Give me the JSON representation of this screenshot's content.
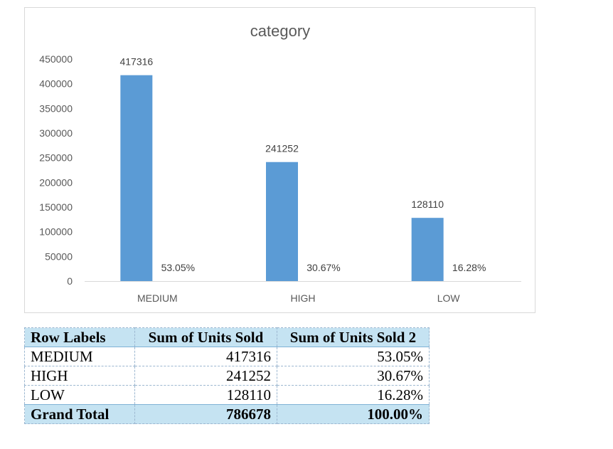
{
  "chart_data": {
    "type": "bar",
    "title": "category",
    "categories": [
      "MEDIUM",
      "HIGH",
      "LOW"
    ],
    "series": [
      {
        "values": [
          417316,
          241252,
          128110
        ],
        "labels": [
          "417316",
          "241252",
          "128110"
        ],
        "color": "#5b9bd5"
      },
      {
        "values": [
          0.5305,
          0.3067,
          0.1628
        ],
        "labels": [
          "53.05%",
          "30.67%",
          "16.28%"
        ]
      }
    ],
    "ylim": [
      0,
      450000
    ],
    "yticks": [
      "0",
      "50000",
      "100000",
      "150000",
      "200000",
      "250000",
      "300000",
      "350000",
      "400000",
      "450000"
    ],
    "grid": false,
    "legend": "none"
  },
  "pivot": {
    "headers": [
      "Row Labels",
      "Sum of Units Sold",
      "Sum of Units Sold 2"
    ],
    "rows": [
      [
        "MEDIUM",
        "417316",
        "53.05%"
      ],
      [
        "HIGH",
        "241252",
        "30.67%"
      ],
      [
        "LOW",
        "128110",
        "16.28%"
      ]
    ],
    "total": [
      "Grand Total",
      "786678",
      "100.00%"
    ],
    "header_color": "#c5e3f2"
  }
}
